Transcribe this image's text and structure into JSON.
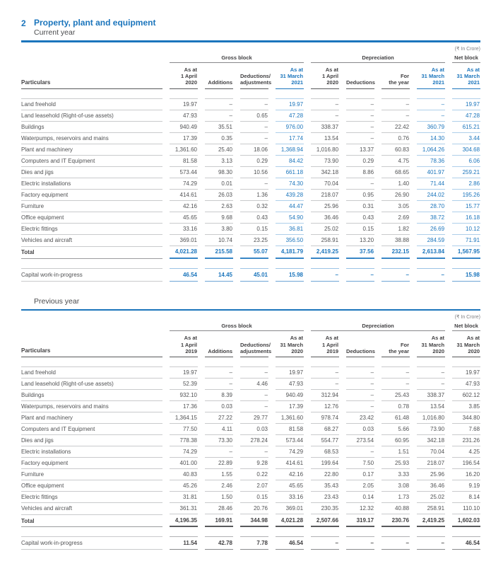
{
  "page": {
    "section_number": "2",
    "title": "Property, plant and equipment",
    "unit_note": "(₹ In Crore)",
    "accent_color": "#1b75bc"
  },
  "tables": [
    {
      "caption": "Current year",
      "particulars_header": "Particulars",
      "groups": [
        {
          "label": "Gross block",
          "span": 4
        },
        {
          "label": "Depreciation",
          "span": 4
        },
        {
          "label": "Net block",
          "span": 1
        }
      ],
      "columns": [
        "As at\n1 April\n2020",
        "Additions",
        "Deductions/\nadjustments",
        "As at\n31 March\n2021",
        "As at\n1 April\n2020",
        "Deductions",
        "For\nthe year",
        "As at\n31 March\n2021",
        "As at\n31 March\n2021"
      ],
      "highlight_columns": [
        3,
        7,
        8
      ],
      "highlight_totals": true,
      "rows": [
        {
          "label": "Land freehold",
          "values": [
            "19.97",
            "–",
            "–",
            "19.97",
            "–",
            "–",
            "–",
            "–",
            "19.97"
          ]
        },
        {
          "label": "Land leasehold (Right-of-use assets)",
          "values": [
            "47.93",
            "–",
            "0.65",
            "47.28",
            "–",
            "–",
            "–",
            "–",
            "47.28"
          ]
        },
        {
          "label": "Buildings",
          "values": [
            "940.49",
            "35.51",
            "–",
            "976.00",
            "338.37",
            "–",
            "22.42",
            "360.79",
            "615.21"
          ]
        },
        {
          "label": "Waterpumps, reservoirs and mains",
          "values": [
            "17.39",
            "0.35",
            "–",
            "17.74",
            "13.54",
            "–",
            "0.76",
            "14.30",
            "3.44"
          ]
        },
        {
          "label": "Plant and machinery",
          "values": [
            "1,361.60",
            "25.40",
            "18.06",
            "1,368.94",
            "1,016.80",
            "13.37",
            "60.83",
            "1,064.26",
            "304.68"
          ]
        },
        {
          "label": "Computers and IT Equipment",
          "values": [
            "81.58",
            "3.13",
            "0.29",
            "84.42",
            "73.90",
            "0.29",
            "4.75",
            "78.36",
            "6.06"
          ]
        },
        {
          "label": "Dies and jigs",
          "values": [
            "573.44",
            "98.30",
            "10.56",
            "661.18",
            "342.18",
            "8.86",
            "68.65",
            "401.97",
            "259.21"
          ]
        },
        {
          "label": "Electric installations",
          "values": [
            "74.29",
            "0.01",
            "–",
            "74.30",
            "70.04",
            "–",
            "1.40",
            "71.44",
            "2.86"
          ]
        },
        {
          "label": "Factory equipment",
          "values": [
            "414.61",
            "26.03",
            "1.36",
            "439.28",
            "218.07",
            "0.95",
            "26.90",
            "244.02",
            "195.26"
          ]
        },
        {
          "label": "Furniture",
          "values": [
            "42.16",
            "2.63",
            "0.32",
            "44.47",
            "25.96",
            "0.31",
            "3.05",
            "28.70",
            "15.77"
          ]
        },
        {
          "label": "Office equipment",
          "values": [
            "45.65",
            "9.68",
            "0.43",
            "54.90",
            "36.46",
            "0.43",
            "2.69",
            "38.72",
            "16.18"
          ]
        },
        {
          "label": "Electric fittings",
          "values": [
            "33.16",
            "3.80",
            "0.15",
            "36.81",
            "25.02",
            "0.15",
            "1.82",
            "26.69",
            "10.12"
          ]
        },
        {
          "label": "Vehicles and aircraft",
          "values": [
            "369.01",
            "10.74",
            "23.25",
            "356.50",
            "258.91",
            "13.20",
            "38.88",
            "284.59",
            "71.91"
          ]
        }
      ],
      "total": {
        "label": "Total",
        "values": [
          "4,021.28",
          "215.58",
          "55.07",
          "4,181.79",
          "2,419.25",
          "37.56",
          "232.15",
          "2,613.84",
          "1,567.95"
        ]
      },
      "cwip": {
        "label": "Capital work-in-progress",
        "values": [
          "46.54",
          "14.45",
          "45.01",
          "15.98",
          "–",
          "–",
          "–",
          "–",
          "15.98"
        ]
      }
    },
    {
      "caption": "Previous year",
      "particulars_header": "Particulars",
      "groups": [
        {
          "label": "Gross block",
          "span": 4
        },
        {
          "label": "Depreciation",
          "span": 4
        },
        {
          "label": "Net block",
          "span": 1
        }
      ],
      "columns": [
        "As at\n1 April\n2019",
        "Additions",
        "Deductions/\nadjustments",
        "As at\n31 March\n2020",
        "As at\n1 April\n2019",
        "Deductions",
        "For\nthe year",
        "As at\n31 March\n2020",
        "As at\n31 March\n2020"
      ],
      "highlight_columns": [],
      "highlight_totals": false,
      "rows": [
        {
          "label": "Land freehold",
          "values": [
            "19.97",
            "–",
            "–",
            "19.97",
            "–",
            "–",
            "–",
            "–",
            "19.97"
          ]
        },
        {
          "label": "Land leasehold (Right-of-use assets)",
          "values": [
            "52.39",
            "–",
            "4.46",
            "47.93",
            "–",
            "–",
            "–",
            "–",
            "47.93"
          ]
        },
        {
          "label": "Buildings",
          "values": [
            "932.10",
            "8.39",
            "–",
            "940.49",
            "312.94",
            "–",
            "25.43",
            "338.37",
            "602.12"
          ]
        },
        {
          "label": "Waterpumps, reservoirs and mains",
          "values": [
            "17.36",
            "0.03",
            "–",
            "17.39",
            "12.76",
            "–",
            "0.78",
            "13.54",
            "3.85"
          ]
        },
        {
          "label": "Plant and machinery",
          "values": [
            "1,364.15",
            "27.22",
            "29.77",
            "1,361.60",
            "978.74",
            "23.42",
            "61.48",
            "1,016.80",
            "344.80"
          ]
        },
        {
          "label": "Computers and IT Equipment",
          "values": [
            "77.50",
            "4.11",
            "0.03",
            "81.58",
            "68.27",
            "0.03",
            "5.66",
            "73.90",
            "7.68"
          ]
        },
        {
          "label": "Dies and jigs",
          "values": [
            "778.38",
            "73.30",
            "278.24",
            "573.44",
            "554.77",
            "273.54",
            "60.95",
            "342.18",
            "231.26"
          ]
        },
        {
          "label": "Electric installations",
          "values": [
            "74.29",
            "–",
            "–",
            "74.29",
            "68.53",
            "–",
            "1.51",
            "70.04",
            "4.25"
          ]
        },
        {
          "label": "Factory equipment",
          "values": [
            "401.00",
            "22.89",
            "9.28",
            "414.61",
            "199.64",
            "7.50",
            "25.93",
            "218.07",
            "196.54"
          ]
        },
        {
          "label": "Furniture",
          "values": [
            "40.83",
            "1.55",
            "0.22",
            "42.16",
            "22.80",
            "0.17",
            "3.33",
            "25.96",
            "16.20"
          ]
        },
        {
          "label": "Office equipment",
          "values": [
            "45.26",
            "2.46",
            "2.07",
            "45.65",
            "35.43",
            "2.05",
            "3.08",
            "36.46",
            "9.19"
          ]
        },
        {
          "label": "Electric fittings",
          "values": [
            "31.81",
            "1.50",
            "0.15",
            "33.16",
            "23.43",
            "0.14",
            "1.73",
            "25.02",
            "8.14"
          ]
        },
        {
          "label": "Vehicles and aircraft",
          "values": [
            "361.31",
            "28.46",
            "20.76",
            "369.01",
            "230.35",
            "12.32",
            "40.88",
            "258.91",
            "110.10"
          ]
        }
      ],
      "total": {
        "label": "Total",
        "values": [
          "4,196.35",
          "169.91",
          "344.98",
          "4,021.28",
          "2,507.66",
          "319.17",
          "230.76",
          "2,419.25",
          "1,602.03"
        ]
      },
      "cwip": {
        "label": "Capital work-in-progress",
        "values": [
          "11.54",
          "42.78",
          "7.78",
          "46.54",
          "–",
          "–",
          "–",
          "–",
          "46.54"
        ]
      }
    }
  ]
}
